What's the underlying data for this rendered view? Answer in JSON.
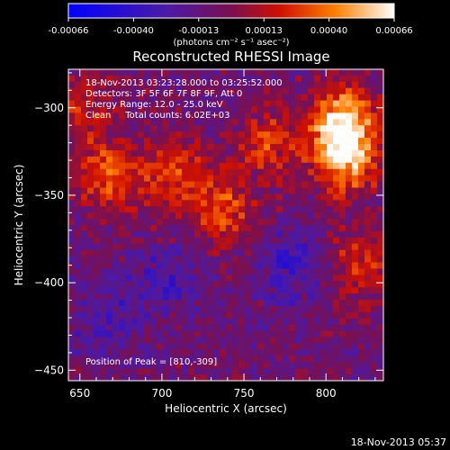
{
  "title": "Reconstructed RHESSI Image",
  "colorbar": {
    "ticks": [
      "-0.00066",
      "-0.00040",
      "-0.00013",
      "0.00013",
      "0.00040",
      "0.00066"
    ],
    "unit_label": "(photons cm⁻² s⁻¹ asec⁻²)"
  },
  "annotations": {
    "time_range": "18-Nov-2013 03:23:28.000 to 03:25:52.000",
    "detectors": "Detectors: 3F 5F 6F 7F 8F 9F, Att 0",
    "energy": "Energy Range: 12.0 - 25.0 keV",
    "clean": "Clean     Total counts: 6.02E+03",
    "peak": "Position of Peak = [810,-309]"
  },
  "footer": "18-Nov-2013 05:37",
  "chart_data": {
    "type": "heatmap",
    "title": "Reconstructed RHESSI Image",
    "xlabel": "Heliocentric X (arcsec)",
    "ylabel": "Heliocentric Y (arcsec)",
    "xlim": [
      643,
      835
    ],
    "ylim": [
      -456,
      -278
    ],
    "xticks": [
      650,
      700,
      750,
      800
    ],
    "yticks": [
      -300,
      -350,
      -400,
      -450
    ],
    "zlim": [
      -0.00066,
      0.00066
    ],
    "colormap": "blue-purple-red-yellow-white",
    "peak_position": [
      810,
      -309
    ],
    "bright_sources": [
      {
        "x": 810,
        "y": -309,
        "value": 0.00066
      },
      {
        "x": 812,
        "y": -330,
        "value": 0.0005
      },
      {
        "x": 668,
        "y": -338,
        "value": 0.0004
      },
      {
        "x": 708,
        "y": -338,
        "value": 0.00035
      },
      {
        "x": 738,
        "y": -358,
        "value": 0.00035
      },
      {
        "x": 765,
        "y": -320,
        "value": 0.0003
      },
      {
        "x": 820,
        "y": -390,
        "value": 0.0003
      },
      {
        "x": 650,
        "y": -300,
        "value": 0.00025
      }
    ],
    "dim_regions": [
      {
        "x": 780,
        "y": -390,
        "value": -0.00025
      },
      {
        "x": 700,
        "y": -400,
        "value": -0.0002
      },
      {
        "x": 665,
        "y": -425,
        "value": -0.00018
      }
    ]
  }
}
